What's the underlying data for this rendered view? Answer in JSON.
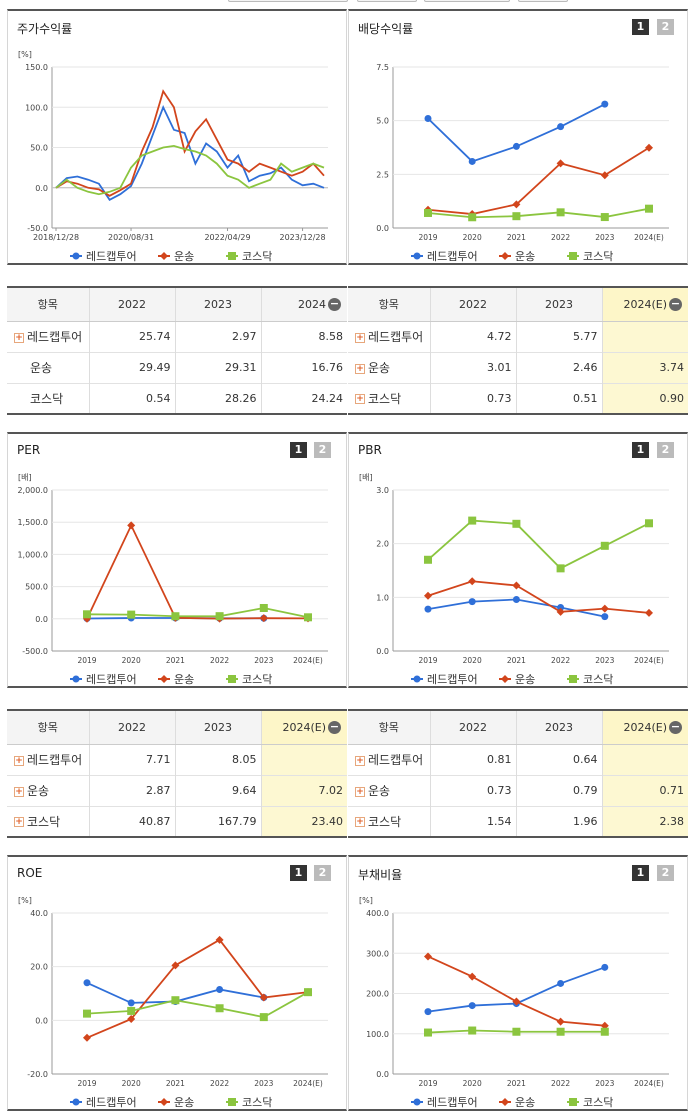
{
  "series_colors": {
    "redcap": "#2f6fd8",
    "transport": "#d2451c",
    "kosdaq": "#8bc53f"
  },
  "panels": {
    "stock_return": {
      "title": "주가수익률",
      "unit": "[%]",
      "legend": [
        "레드캡투어",
        "운송",
        "코스닥"
      ],
      "chart_data": {
        "type": "line",
        "title": "주가수익률",
        "ylabel": "[%]",
        "ylim": [
          -50,
          150
        ],
        "yticks": [
          "150.0",
          "100.0",
          "50.0",
          "0.0",
          "-50.0"
        ],
        "xticks": [
          "2018/12/28",
          "2020/08/31",
          "2022/04/29",
          "2023/12/28"
        ],
        "x": [
          "2018/12/28",
          "2019/03",
          "2019/06",
          "2019/09",
          "2019/12",
          "2020/03",
          "2020/06",
          "2020/08/31",
          "2020/11",
          "2021/01",
          "2021/03",
          "2021/05",
          "2021/07",
          "2021/09",
          "2021/11",
          "2022/01",
          "2022/04/29",
          "2022/07",
          "2022/10",
          "2023/01",
          "2023/04",
          "2023/07",
          "2023/10",
          "2023/12/28",
          "2024/03",
          "2024/06"
        ],
        "series": [
          {
            "name": "레드캡투어",
            "values": [
              0,
              12,
              14,
              10,
              5,
              -15,
              -8,
              2,
              30,
              65,
              100,
              72,
              68,
              30,
              55,
              45,
              25,
              40,
              8,
              15,
              18,
              25,
              10,
              3,
              5,
              0
            ]
          },
          {
            "name": "운송",
            "values": [
              0,
              8,
              5,
              0,
              -2,
              -10,
              -3,
              5,
              45,
              75,
              120,
              100,
              45,
              70,
              85,
              60,
              35,
              30,
              20,
              30,
              25,
              20,
              15,
              20,
              30,
              15
            ]
          },
          {
            "name": "코스닥",
            "values": [
              0,
              10,
              0,
              -5,
              -8,
              -5,
              0,
              25,
              40,
              45,
              50,
              52,
              48,
              45,
              40,
              30,
              15,
              10,
              0,
              5,
              10,
              30,
              20,
              25,
              30,
              25
            ]
          }
        ]
      }
    },
    "dividend_yield": {
      "title": "배당수익률",
      "pages": [
        "1",
        "2"
      ],
      "legend": [
        "레드캡투어",
        "운송",
        "코스닥"
      ],
      "chart_data": {
        "type": "line",
        "ylim": [
          0,
          7.5
        ],
        "yticks": [
          "7.5",
          "5.0",
          "2.5",
          "0.0"
        ],
        "categories": [
          "2019",
          "2020",
          "2021",
          "2022",
          "2023",
          "2024(E)"
        ],
        "series": [
          {
            "name": "레드캡투어",
            "values": [
              5.1,
              3.1,
              3.8,
              4.72,
              5.77,
              null
            ]
          },
          {
            "name": "운송",
            "values": [
              0.85,
              0.65,
              1.1,
              3.01,
              2.46,
              3.74
            ]
          },
          {
            "name": "코스닥",
            "values": [
              0.7,
              0.5,
              0.55,
              0.73,
              0.51,
              0.9
            ]
          }
        ]
      }
    },
    "per": {
      "title": "PER",
      "unit": "[배]",
      "pages": [
        "1",
        "2"
      ],
      "legend": [
        "레드캡투어",
        "운송",
        "코스닥"
      ],
      "chart_data": {
        "type": "line",
        "ylabel": "[배]",
        "ylim": [
          -500,
          2000
        ],
        "yticks": [
          "2,000.0",
          "1,500.0",
          "1,000.0",
          "500.0",
          "0.0",
          "-500.0"
        ],
        "categories": [
          "2019",
          "2020",
          "2021",
          "2022",
          "2023",
          "2024(E)"
        ],
        "series": [
          {
            "name": "레드캡투어",
            "values": [
              5,
              12,
              12,
              7.71,
              8.05,
              null
            ]
          },
          {
            "name": "운송",
            "values": [
              0,
              1450,
              15,
              2.87,
              9.64,
              7.02
            ]
          },
          {
            "name": "코스닥",
            "values": [
              70,
              65,
              40,
              40.87,
              167.79,
              23.4
            ]
          }
        ]
      }
    },
    "pbr": {
      "title": "PBR",
      "unit": "[배]",
      "pages": [
        "1",
        "2"
      ],
      "legend": [
        "레드캡투어",
        "운송",
        "코스닥"
      ],
      "chart_data": {
        "type": "line",
        "ylabel": "[배]",
        "ylim": [
          0,
          3
        ],
        "yticks": [
          "3.0",
          "2.0",
          "1.0",
          "0.0"
        ],
        "categories": [
          "2019",
          "2020",
          "2021",
          "2022",
          "2023",
          "2024(E)"
        ],
        "series": [
          {
            "name": "레드캡투어",
            "values": [
              0.78,
              0.92,
              0.96,
              0.81,
              0.64,
              null
            ]
          },
          {
            "name": "운송",
            "values": [
              1.03,
              1.3,
              1.22,
              0.73,
              0.79,
              0.71
            ]
          },
          {
            "name": "코스닥",
            "values": [
              1.7,
              2.43,
              2.37,
              1.54,
              1.96,
              2.38
            ]
          }
        ]
      }
    },
    "roe": {
      "title": "ROE",
      "unit": "[%]",
      "pages": [
        "1",
        "2"
      ],
      "legend": [
        "레드캡투어",
        "운송",
        "코스닥"
      ],
      "chart_data": {
        "type": "line",
        "ylabel": "[%]",
        "ylim": [
          -20,
          40
        ],
        "yticks": [
          "40.0",
          "20.0",
          "0.0",
          "-20.0"
        ],
        "categories": [
          "2019",
          "2020",
          "2021",
          "2022",
          "2023",
          "2024(E)"
        ],
        "series": [
          {
            "name": "레드캡투어",
            "values": [
              14,
              6.5,
              7,
              11.5,
              8.5,
              null
            ]
          },
          {
            "name": "운송",
            "values": [
              -6.5,
              0.5,
              20.5,
              30,
              8.5,
              10.5
            ]
          },
          {
            "name": "코스닥",
            "values": [
              2.5,
              3.5,
              7.5,
              4.5,
              1.2,
              10.5
            ]
          }
        ]
      }
    },
    "debt_ratio": {
      "title": "부채비율",
      "unit": "[%]",
      "pages": [
        "1",
        "2"
      ],
      "legend": [
        "레드캡투어",
        "운송",
        "코스닥"
      ],
      "chart_data": {
        "type": "line",
        "ylabel": "[%]",
        "ylim": [
          0,
          400
        ],
        "yticks": [
          "400.0",
          "300.0",
          "200.0",
          "100.0",
          "0.0"
        ],
        "categories": [
          "2019",
          "2020",
          "2021",
          "2022",
          "2023",
          "2024(E)"
        ],
        "series": [
          {
            "name": "레드캡투어",
            "values": [
              155,
              170,
              175,
              225,
              265,
              null
            ]
          },
          {
            "name": "운송",
            "values": [
              292,
              242,
              180,
              130,
              120,
              null
            ]
          },
          {
            "name": "코스닥",
            "values": [
              103,
              108,
              105,
              105,
              105,
              null
            ]
          }
        ]
      }
    }
  },
  "tables": {
    "stock_return": {
      "headers": [
        "항목",
        "2022",
        "2023",
        "2024"
      ],
      "rows": [
        {
          "label": "레드캡투어",
          "plus": true,
          "v": [
            "25.74",
            "2.97",
            "8.58"
          ]
        },
        {
          "label": "운송",
          "plus": false,
          "v": [
            "29.49",
            "29.31",
            "16.76"
          ]
        },
        {
          "label": "코스닥",
          "plus": false,
          "v": [
            "0.54",
            "28.26",
            "24.24"
          ]
        }
      ]
    },
    "dividend_yield": {
      "headers": [
        "항목",
        "2022",
        "2023",
        "2024(E)"
      ],
      "rows": [
        {
          "label": "레드캡투어",
          "plus": true,
          "v": [
            "4.72",
            "5.77",
            ""
          ]
        },
        {
          "label": "운송",
          "plus": true,
          "v": [
            "3.01",
            "2.46",
            "3.74"
          ]
        },
        {
          "label": "코스닥",
          "plus": true,
          "v": [
            "0.73",
            "0.51",
            "0.90"
          ]
        }
      ]
    },
    "per": {
      "headers": [
        "항목",
        "2022",
        "2023",
        "2024(E)"
      ],
      "rows": [
        {
          "label": "레드캡투어",
          "plus": true,
          "v": [
            "7.71",
            "8.05",
            ""
          ]
        },
        {
          "label": "운송",
          "plus": true,
          "v": [
            "2.87",
            "9.64",
            "7.02"
          ]
        },
        {
          "label": "코스닥",
          "plus": true,
          "v": [
            "40.87",
            "167.79",
            "23.40"
          ]
        }
      ]
    },
    "pbr": {
      "headers": [
        "항목",
        "2022",
        "2023",
        "2024(E)"
      ],
      "rows": [
        {
          "label": "레드캡투어",
          "plus": true,
          "v": [
            "0.81",
            "0.64",
            ""
          ]
        },
        {
          "label": "운송",
          "plus": true,
          "v": [
            "0.73",
            "0.79",
            "0.71"
          ]
        },
        {
          "label": "코스닥",
          "plus": true,
          "v": [
            "1.54",
            "1.96",
            "2.38"
          ]
        }
      ]
    }
  }
}
